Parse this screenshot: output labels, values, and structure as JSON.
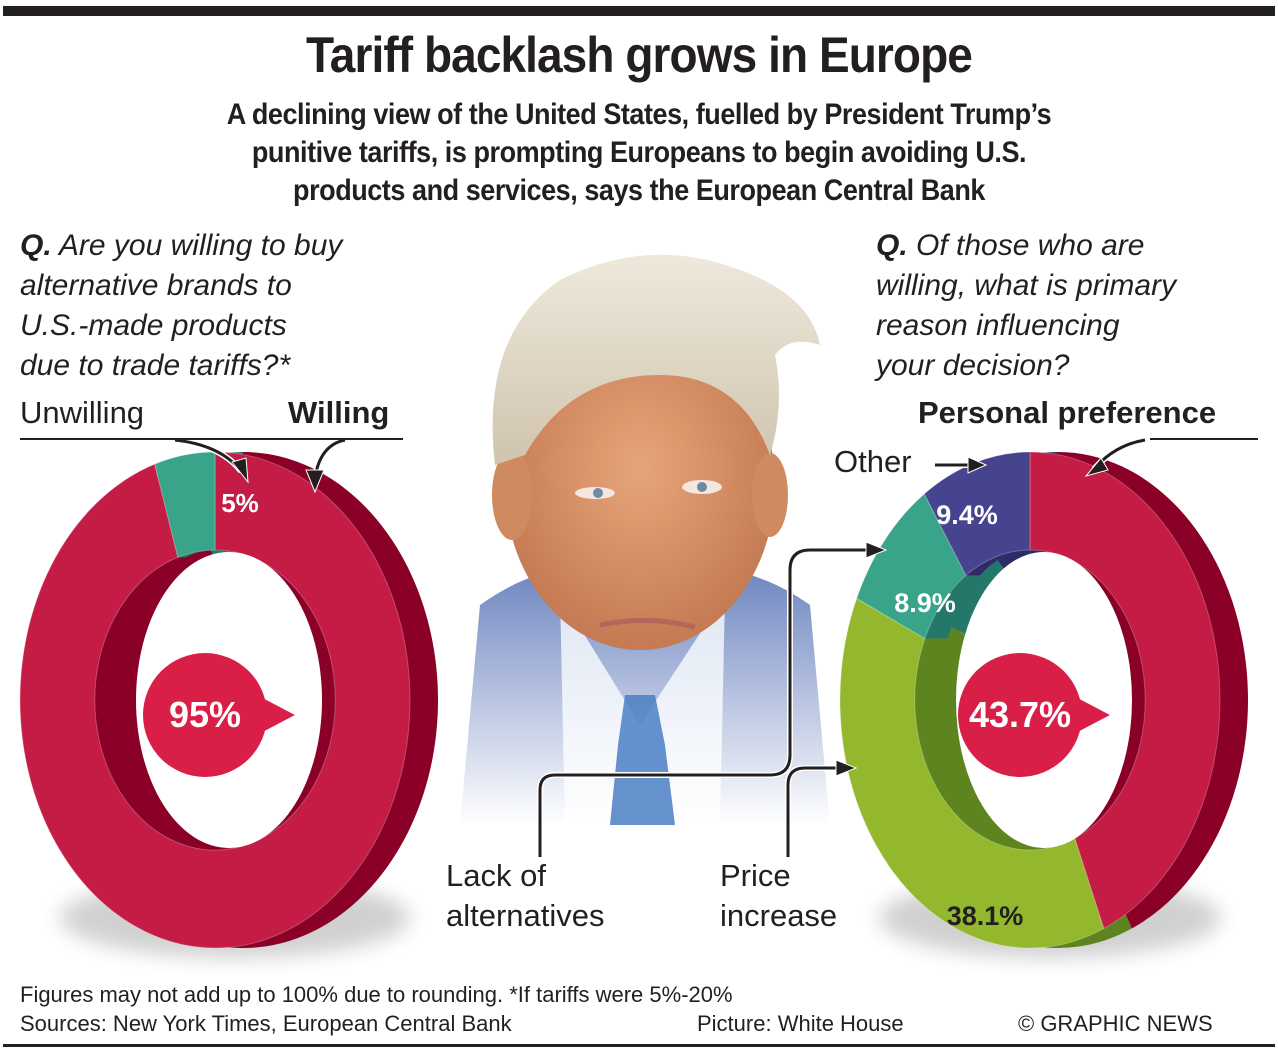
{
  "header": {
    "title": "Tariff backlash grows in Europe",
    "subtitle_lines": [
      "A declining view of the United States, fuelled by President Trump’s",
      "punitive tariffs, is prompting Europeans to begin avoiding U.S.",
      "products and services, says the European Central Bank"
    ]
  },
  "left_question": {
    "prefix": "Q.",
    "lines": [
      "Are you willing to buy",
      "alternative brands to",
      "U.S.-made products",
      "due to trade tariffs?*"
    ]
  },
  "right_question": {
    "prefix": "Q.",
    "lines": [
      "Of those who are",
      "willing, what is primary",
      "reason influencing",
      "your decision?"
    ]
  },
  "portrait": {
    "icon": "portrait-photo",
    "credit": "Picture: White House"
  },
  "chart_data": [
    {
      "type": "pie",
      "variant": "donut-3d",
      "question": "Are you willing to buy alternative brands to U.S.-made products due to trade tariffs?*",
      "slices": [
        {
          "label": "Willing",
          "value": 95,
          "display": "95%",
          "color": "#c41c44"
        },
        {
          "label": "Unwilling",
          "value": 5,
          "display": "5%",
          "color": "#3aa48a"
        }
      ],
      "highlight": {
        "label": "Willing",
        "display": "95%"
      },
      "callouts": {
        "left": "Unwilling",
        "right": "Willing"
      }
    },
    {
      "type": "pie",
      "variant": "donut-3d",
      "question": "Of those who are willing, what is primary reason influencing your decision?",
      "slices": [
        {
          "label": "Personal preference",
          "value": 43.7,
          "display": "43.7%",
          "color": "#c41c44"
        },
        {
          "label": "Price increase",
          "value": 38.1,
          "display": "38.1%",
          "color": "#93b82e"
        },
        {
          "label": "Lack of alternatives",
          "value": 8.9,
          "display": "8.9%",
          "color": "#3aa48a"
        },
        {
          "label": "Other",
          "value": 9.4,
          "display": "9.4%",
          "color": "#46448f"
        }
      ],
      "highlight": {
        "label": "Personal preference",
        "display": "43.7%"
      },
      "callouts": {
        "top": "Personal preference",
        "other": "Other",
        "lack_line1": "Lack of",
        "lack_line2": "alternatives",
        "price_line1": "Price",
        "price_line2": "increase"
      }
    }
  ],
  "footer": {
    "note": "Figures may not add up to 100% due to rounding. *If tariffs were 5%-20%",
    "sources": "Sources: New York Times, European Central Bank",
    "picture_credit": "Picture: White House",
    "copyright": "© GRAPHIC NEWS"
  },
  "colors": {
    "red": "#c41c44",
    "red_dark": "#8a0027",
    "teal": "#3aa48a",
    "teal_dark": "#23786a",
    "green": "#93b82e",
    "green_dark": "#5e8420",
    "purple": "#46448f",
    "purple_dark": "#2e2c66",
    "bubble": "#d91e48",
    "text": "#231f20"
  }
}
